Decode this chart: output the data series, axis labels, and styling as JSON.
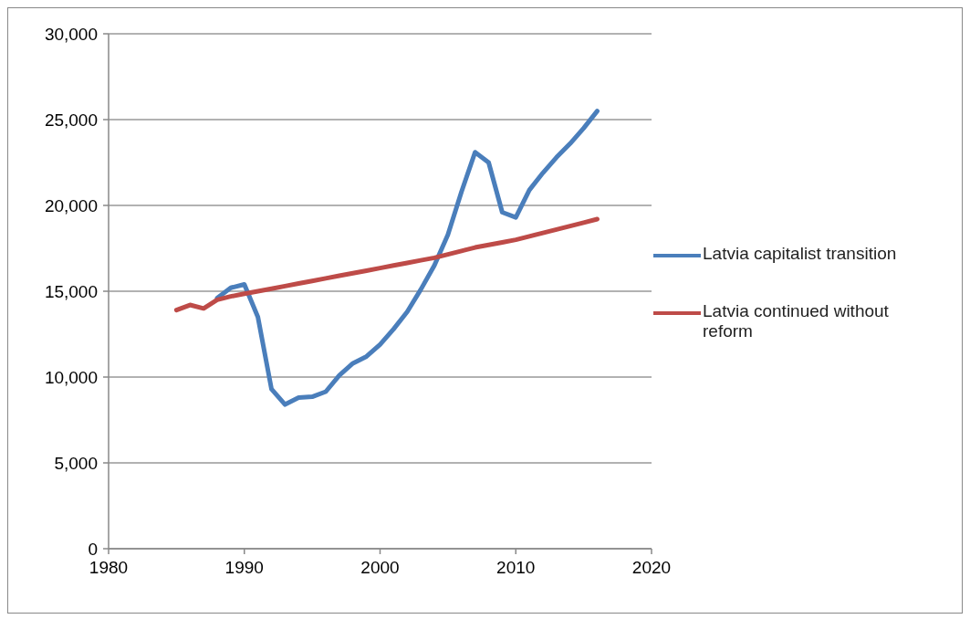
{
  "chart_data": {
    "type": "line",
    "xlim": [
      1980,
      2020
    ],
    "xticks": [
      1980,
      1990,
      2000,
      2010,
      2020
    ],
    "ylim": [
      0,
      30000
    ],
    "yticks": [
      {
        "value": 0,
        "label": "0"
      },
      {
        "value": 5000,
        "label": "5,000"
      },
      {
        "value": 10000,
        "label": "10,000"
      },
      {
        "value": 15000,
        "label": "15,000"
      },
      {
        "value": 20000,
        "label": "20,000"
      },
      {
        "value": 25000,
        "label": "25,000"
      },
      {
        "value": 30000,
        "label": "30,000"
      }
    ],
    "grid": "y",
    "legend": "right",
    "marker": "none",
    "line_style": "solid",
    "series": [
      {
        "name": "Latvia capitalist transition",
        "color": "#4a7ebb",
        "x": [
          1988,
          1989,
          1990,
          1991,
          1992,
          1993,
          1994,
          1995,
          1996,
          1997,
          1998,
          1999,
          2000,
          2001,
          2002,
          2003,
          2004,
          2005,
          2006,
          2007,
          2008,
          2009,
          2010,
          2011,
          2012,
          2013,
          2014,
          2015,
          2016
        ],
        "values": [
          14600,
          15200,
          15400,
          13500,
          9300,
          8400,
          8800,
          8850,
          9150,
          10100,
          10800,
          11200,
          11900,
          12800,
          13800,
          15100,
          16500,
          18300,
          20800,
          23100,
          22500,
          19600,
          19300,
          20900,
          21900,
          22800,
          23600,
          24500,
          25500
        ]
      },
      {
        "name": "Latvia continued without reform",
        "color": "#be4b48",
        "x": [
          1985,
          1986,
          1987,
          1988,
          1989,
          1990,
          1991,
          1992,
          1993,
          1994,
          1995,
          1996,
          1997,
          1998,
          1999,
          2000,
          2001,
          2002,
          2003,
          2004,
          2005,
          2006,
          2007,
          2008,
          2009,
          2010,
          2011,
          2012,
          2013,
          2014,
          2015,
          2016
        ],
        "values": [
          13900,
          14200,
          14000,
          14500,
          14700,
          14850,
          15000,
          15150,
          15300,
          15450,
          15600,
          15750,
          15900,
          16050,
          16200,
          16350,
          16500,
          16650,
          16800,
          16950,
          17150,
          17350,
          17550,
          17700,
          17850,
          18000,
          18200,
          18400,
          18600,
          18800,
          19000,
          19200
        ]
      }
    ]
  }
}
